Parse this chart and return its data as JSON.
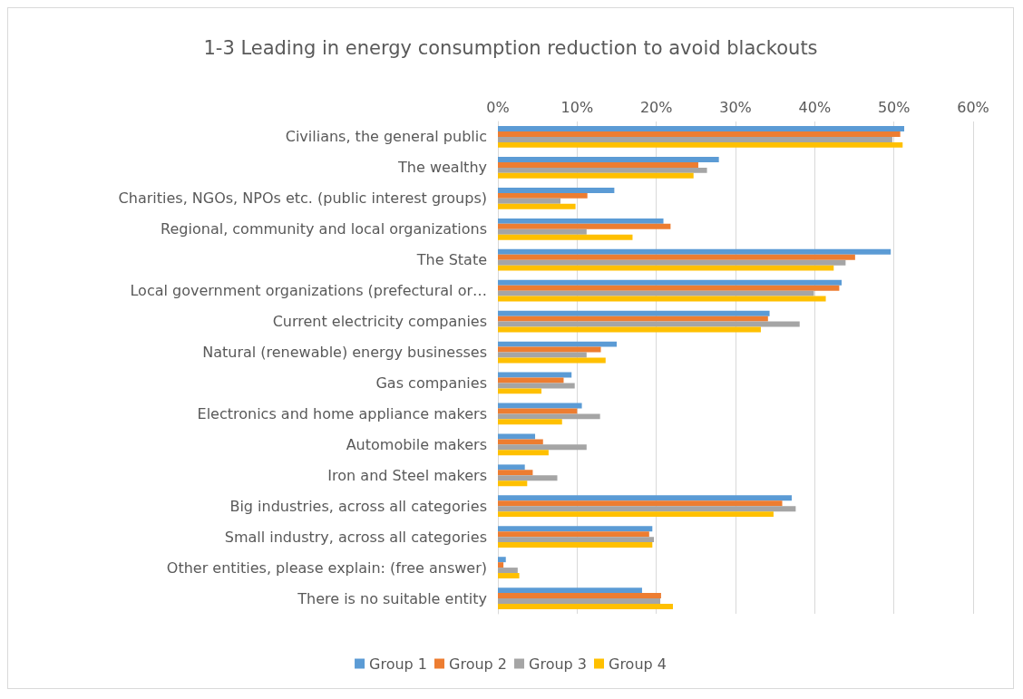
{
  "chart_data": {
    "type": "bar",
    "orientation": "horizontal",
    "title": "1-3 Leading in energy consumption reduction to avoid blackouts",
    "categories": [
      "Civilians, the general public",
      "The wealthy",
      "Charities, NGOs, NPOs etc. (public interest groups)",
      "Regional, community and local organizations",
      "The State",
      "Local government organizations (prefectural or…",
      "Current electricity companies",
      "Natural (renewable) energy businesses",
      "Gas companies",
      "Electronics and home appliance makers",
      "Automobile makers",
      "Iron and Steel makers",
      "Big industries, across all categories",
      "Small industry, across all categories",
      "Other entities, please explain: (free answer)",
      "There is no suitable entity"
    ],
    "series": [
      {
        "name": "Group 1",
        "color": "#5b9bd5",
        "values": [
          51.3,
          27.9,
          14.7,
          20.9,
          49.6,
          43.4,
          34.3,
          15.0,
          9.3,
          10.6,
          4.7,
          3.4,
          37.1,
          19.5,
          1.0,
          18.2
        ]
      },
      {
        "name": "Group 2",
        "color": "#ed7d31",
        "values": [
          50.8,
          25.3,
          11.3,
          21.8,
          45.1,
          43.1,
          34.1,
          13.0,
          8.3,
          10.0,
          5.7,
          4.4,
          35.9,
          19.1,
          0.7,
          20.6
        ]
      },
      {
        "name": "Group 3",
        "color": "#a5a5a5",
        "values": [
          49.8,
          26.4,
          7.9,
          11.2,
          43.9,
          39.9,
          38.1,
          11.2,
          9.7,
          12.9,
          11.2,
          7.5,
          37.6,
          19.7,
          2.5,
          20.5
        ]
      },
      {
        "name": "Group 4",
        "color": "#ffc000",
        "values": [
          51.1,
          24.7,
          9.8,
          17.0,
          42.4,
          41.4,
          33.2,
          13.6,
          5.5,
          8.1,
          6.4,
          3.7,
          34.8,
          19.5,
          2.7,
          22.1
        ]
      }
    ],
    "xlim": [
      0,
      60
    ],
    "xticks": [
      {
        "value": 0,
        "label": "0%"
      },
      {
        "value": 10,
        "label": "10%"
      },
      {
        "value": 20,
        "label": "20%"
      },
      {
        "value": 30,
        "label": "30%"
      },
      {
        "value": 40,
        "label": "40%"
      },
      {
        "value": 50,
        "label": "50%"
      },
      {
        "value": 60,
        "label": "60%"
      }
    ],
    "grid": "x",
    "legend": "bottom"
  }
}
